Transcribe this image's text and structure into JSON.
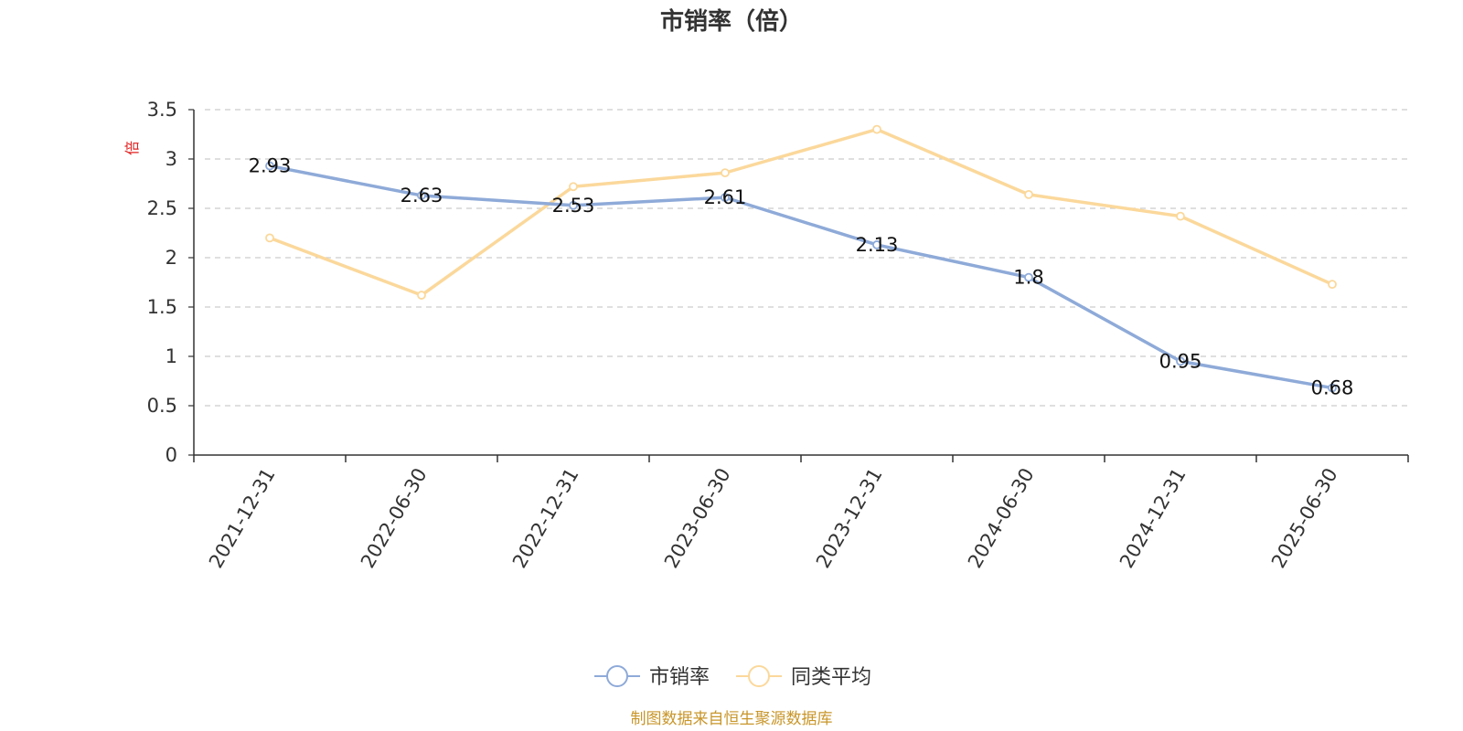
{
  "chart_data": {
    "type": "line",
    "title": "市销率（倍）",
    "ylabel": "倍",
    "xlabel": "",
    "ylim": [
      0,
      3.5
    ],
    "y_ticks": [
      "0",
      "0.5",
      "1",
      "1.5",
      "2",
      "2.5",
      "3",
      "3.5"
    ],
    "grid": true,
    "legend_position": "bottom-center",
    "categories": [
      "2021-12-31",
      "2022-06-30",
      "2022-12-31",
      "2023-06-30",
      "2023-12-31",
      "2024-06-30",
      "2024-12-31",
      "2025-06-30"
    ],
    "series": [
      {
        "name": "市销率",
        "color": "#8eaad8",
        "values": [
          2.93,
          2.63,
          2.53,
          2.61,
          2.13,
          1.8,
          0.95,
          0.68
        ],
        "labels": [
          "2.93",
          "2.63",
          "2.53",
          "2.61",
          "2.13",
          "1.8",
          "0.95",
          "0.68"
        ],
        "show_labels": true
      },
      {
        "name": "同类平均",
        "color": "#fbd89b",
        "values": [
          2.2,
          1.62,
          2.72,
          2.86,
          3.3,
          2.64,
          2.42,
          1.73
        ],
        "show_labels": false
      }
    ]
  },
  "source_note": "制图数据来自恒生聚源数据库",
  "colors": {
    "unit_label": "#e02020",
    "source_note": "#c8962a",
    "grid": "#cccccc",
    "axis": "#333333"
  }
}
